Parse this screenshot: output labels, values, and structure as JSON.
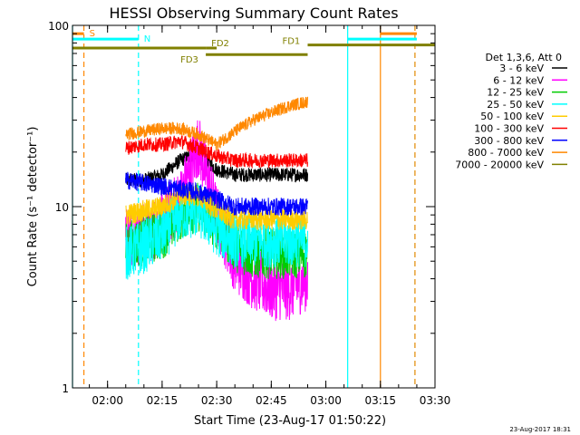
{
  "chart_data": {
    "type": "line",
    "title": "HESSI Observing Summary Count Rates",
    "xlabel": "Start Time (23-Aug-17 01:50:22)",
    "ylabel": "Count Rate (s⁻¹ detector⁻¹)",
    "yscale": "log",
    "ylim": [
      1,
      100
    ],
    "xlim": [
      "01:50:22",
      "03:30"
    ],
    "x_ticks": [
      "02:00",
      "02:15",
      "02:30",
      "02:45",
      "03:00",
      "03:15",
      "03:30"
    ],
    "y_ticks": [
      "1",
      "10",
      "100"
    ],
    "grid": false,
    "legend_title": "Det 1,3,6, Att 0",
    "legend_position": "right",
    "footer": "23-Aug-2017 18:31",
    "data_window": [
      "02:05",
      "02:55"
    ],
    "series": [
      {
        "name": "3 - 6 keV",
        "color": "#000000",
        "x": [
          "02:05",
          "02:10",
          "02:15",
          "02:20",
          "02:25",
          "02:30",
          "02:35",
          "02:40",
          "02:45",
          "02:50",
          "02:55"
        ],
        "values": [
          14,
          14,
          15,
          18,
          20,
          16,
          15,
          15,
          15,
          15,
          15
        ]
      },
      {
        "name": "6 - 12 keV",
        "color": "#ff00ff",
        "x": [
          "02:05",
          "02:10",
          "02:15",
          "02:20",
          "02:25",
          "02:30",
          "02:35",
          "02:40",
          "02:45",
          "02:50",
          "02:55"
        ],
        "values": [
          7,
          7,
          8,
          11,
          22,
          9,
          5,
          4,
          3.5,
          3.5,
          4
        ]
      },
      {
        "name": "12 - 25 keV",
        "color": "#00cc00",
        "x": [
          "02:05",
          "02:10",
          "02:15",
          "02:20",
          "02:25",
          "02:30",
          "02:35",
          "02:40",
          "02:45",
          "02:50",
          "02:55"
        ],
        "values": [
          6,
          6.5,
          7,
          9,
          10,
          8,
          6,
          5.5,
          5.5,
          5.5,
          5.5
        ]
      },
      {
        "name": "25 - 50 keV",
        "color": "#00ffff",
        "x": [
          "02:05",
          "02:10",
          "02:15",
          "02:20",
          "02:25",
          "02:30",
          "02:35",
          "02:40",
          "02:45",
          "02:50",
          "02:55"
        ],
        "values": [
          5.5,
          6,
          7,
          9,
          9.5,
          7.5,
          6.5,
          6.5,
          6.5,
          6.5,
          6.5
        ]
      },
      {
        "name": "50 - 100 keV",
        "color": "#ffcc00",
        "x": [
          "02:05",
          "02:10",
          "02:15",
          "02:20",
          "02:25",
          "02:30",
          "02:35",
          "02:40",
          "02:45",
          "02:50",
          "02:55"
        ],
        "values": [
          9,
          9.5,
          10,
          11.5,
          11.5,
          9.5,
          8.5,
          8.5,
          8.5,
          8.5,
          8.5
        ]
      },
      {
        "name": "100 - 300 keV",
        "color": "#ff0000",
        "x": [
          "02:05",
          "02:10",
          "02:15",
          "02:20",
          "02:25",
          "02:30",
          "02:35",
          "02:40",
          "02:45",
          "02:50",
          "02:55"
        ],
        "values": [
          21,
          22,
          22,
          23,
          21,
          19,
          18,
          18,
          18,
          18,
          18
        ]
      },
      {
        "name": "300 - 800 keV",
        "color": "#0000ff",
        "x": [
          "02:05",
          "02:10",
          "02:15",
          "02:20",
          "02:25",
          "02:30",
          "02:35",
          "02:40",
          "02:45",
          "02:50",
          "02:55"
        ],
        "values": [
          14,
          13.5,
          13,
          12.5,
          12,
          11,
          10,
          10,
          10,
          10,
          10
        ]
      },
      {
        "name": "800 - 7000 keV",
        "color": "#ff8800",
        "x": [
          "02:05",
          "02:10",
          "02:15",
          "02:20",
          "02:25",
          "02:30",
          "02:35",
          "02:40",
          "02:45",
          "02:50",
          "02:55"
        ],
        "values": [
          25,
          26,
          27,
          27,
          25,
          22,
          26,
          30,
          33,
          36,
          38
        ]
      },
      {
        "name": "7000 - 20000 keV",
        "color": "#808000",
        "x": [],
        "values": []
      }
    ],
    "annotations": {
      "top_bars": [
        {
          "label": "S",
          "color": "#ff8800",
          "from": "01:50:22",
          "to": "01:53:30",
          "level": 90
        },
        {
          "label": "N",
          "color": "#00ffff",
          "from": "01:50:22",
          "to": "02:08:30",
          "level": 84
        },
        {
          "label": "",
          "color": "#808000",
          "from": "01:50:22",
          "to": "02:27",
          "level": 75
        },
        {
          "label": "FD2",
          "color": "#808000",
          "from": "02:27",
          "to": "02:30",
          "level": 75
        },
        {
          "label": "FD3",
          "color": "#808000",
          "from": "02:27",
          "to": "02:55",
          "level": 69
        },
        {
          "label": "FD1",
          "color": "#808000",
          "from": "02:55",
          "to": "03:30",
          "level": 78
        },
        {
          "label": "",
          "color": "#00ffff",
          "from": "03:06",
          "to": "03:25",
          "level": 84
        },
        {
          "label": "",
          "color": "#ff8800",
          "from": "03:15",
          "to": "03:25",
          "level": 90
        }
      ],
      "vlines": [
        {
          "at": "01:50:22",
          "color": "#00ffff",
          "style": "solid"
        },
        {
          "at": "01:53:30",
          "color": "#ff8800",
          "style": "dashed"
        },
        {
          "at": "02:08:30",
          "color": "#00ffff",
          "style": "dashed"
        },
        {
          "at": "03:06",
          "color": "#00ffff",
          "style": "solid"
        },
        {
          "at": "03:15",
          "color": "#ff8800",
          "style": "solid"
        },
        {
          "at": "03:24:30",
          "color": "#00ffff",
          "style": "dashed"
        },
        {
          "at": "03:24:30",
          "color": "#ff8800",
          "style": "dashed"
        }
      ]
    }
  }
}
